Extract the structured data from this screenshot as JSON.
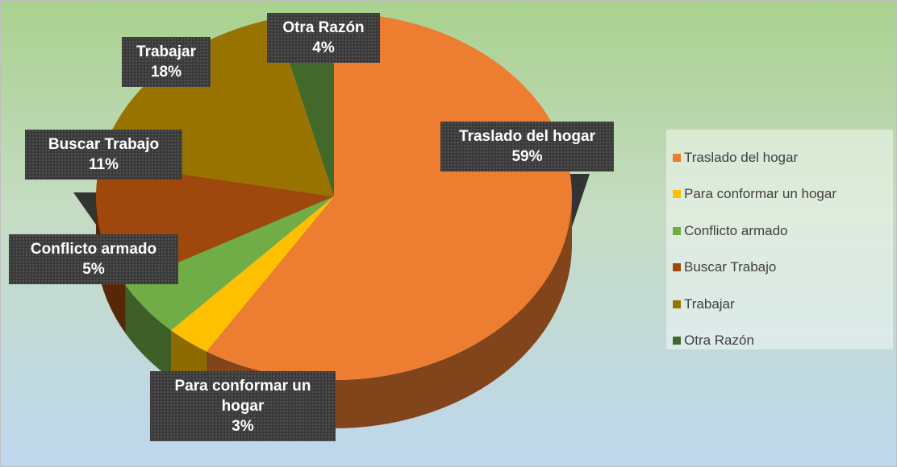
{
  "chart_data": {
    "type": "pie",
    "categories": [
      "Traslado del hogar",
      "Para conformar un hogar",
      "Conflicto armado",
      "Buscar Trabajo",
      "Trabajar",
      "Otra Razón"
    ],
    "values": [
      59,
      3,
      5,
      11,
      18,
      4
    ],
    "value_labels": [
      "59%",
      "3%",
      "5%",
      "11%",
      "18%",
      "4%"
    ],
    "colors": [
      "#ed7d31",
      "#ffc000",
      "#70ad47",
      "#9e480e",
      "#997300",
      "#43682b"
    ],
    "legend": "right"
  }
}
